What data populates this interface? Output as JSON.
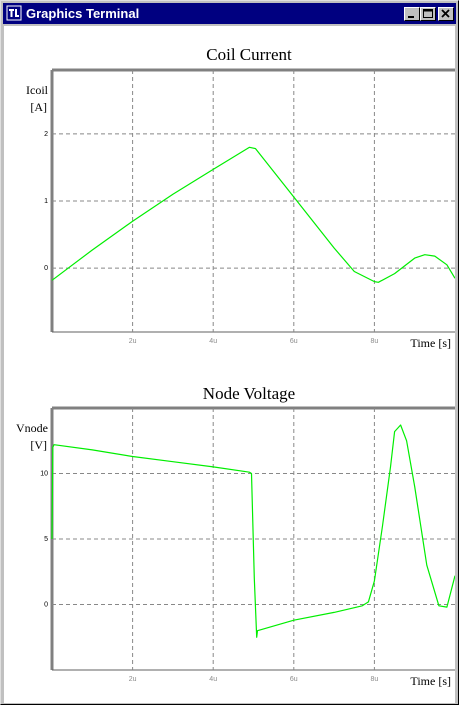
{
  "window": {
    "title": "Graphics Terminal"
  },
  "title_buttons": {
    "minimize": "minimize-icon",
    "maximize": "maximize-icon",
    "close": "close-icon"
  },
  "colors": {
    "trace": "#00ee00",
    "grid": "#888888",
    "titlebar": "#000080",
    "frame": "#c0c0c0"
  },
  "chart_data": [
    {
      "type": "line",
      "title": "Coil Current",
      "ylabel_lines": [
        "Icoil",
        "[A]"
      ],
      "xlabel": "Time [s]",
      "x_ticks": [
        "2u",
        "4u",
        "6u",
        "8u"
      ],
      "x_tick_values": [
        2,
        4,
        6,
        8
      ],
      "y_ticks": [
        "2",
        "1",
        "0"
      ],
      "y_tick_values": [
        2,
        1,
        0
      ],
      "xlim": [
        0,
        10
      ],
      "ylim": [
        -0.95,
        2.95
      ],
      "grid": true,
      "series": [
        {
          "x": [
            0,
            1,
            2,
            3,
            4,
            4.9,
            5.05,
            6,
            7,
            7.5,
            8,
            8.1,
            8.5,
            9,
            9.25,
            9.5,
            9.8,
            10
          ],
          "y": [
            -0.18,
            0.27,
            0.7,
            1.1,
            1.47,
            1.8,
            1.78,
            1.06,
            0.3,
            -0.05,
            -0.2,
            -0.21,
            -0.08,
            0.15,
            0.2,
            0.18,
            0.05,
            -0.15
          ]
        }
      ]
    },
    {
      "type": "line",
      "title": "Node Voltage",
      "ylabel_lines": [
        "Vnode",
        "[V]"
      ],
      "xlabel": "Time [s]",
      "x_ticks": [
        "2u",
        "4u",
        "6u",
        "8u"
      ],
      "x_tick_values": [
        2,
        4,
        6,
        8
      ],
      "y_ticks": [
        "10",
        "5",
        "0"
      ],
      "y_tick_values": [
        10,
        5,
        0
      ],
      "xlim": [
        0,
        10
      ],
      "ylim": [
        -5,
        15
      ],
      "grid": true,
      "series": [
        {
          "x": [
            0,
            0.02,
            0.05,
            1,
            2,
            3,
            4,
            4.9,
            4.95,
            5.02,
            5.08,
            5.1,
            6,
            7,
            7.7,
            7.85,
            8,
            8.2,
            8.4,
            8.5,
            8.65,
            8.8,
            9,
            9.3,
            9.6,
            9.8,
            10
          ],
          "y": [
            5,
            12,
            12.2,
            11.8,
            11.3,
            10.9,
            10.5,
            10.1,
            10.0,
            2,
            -2.5,
            -2.0,
            -1.2,
            -0.6,
            -0.1,
            0.2,
            1.8,
            6,
            10.5,
            13.2,
            13.7,
            12.5,
            9,
            3,
            -0.1,
            -0.2,
            2.2
          ]
        }
      ]
    }
  ]
}
